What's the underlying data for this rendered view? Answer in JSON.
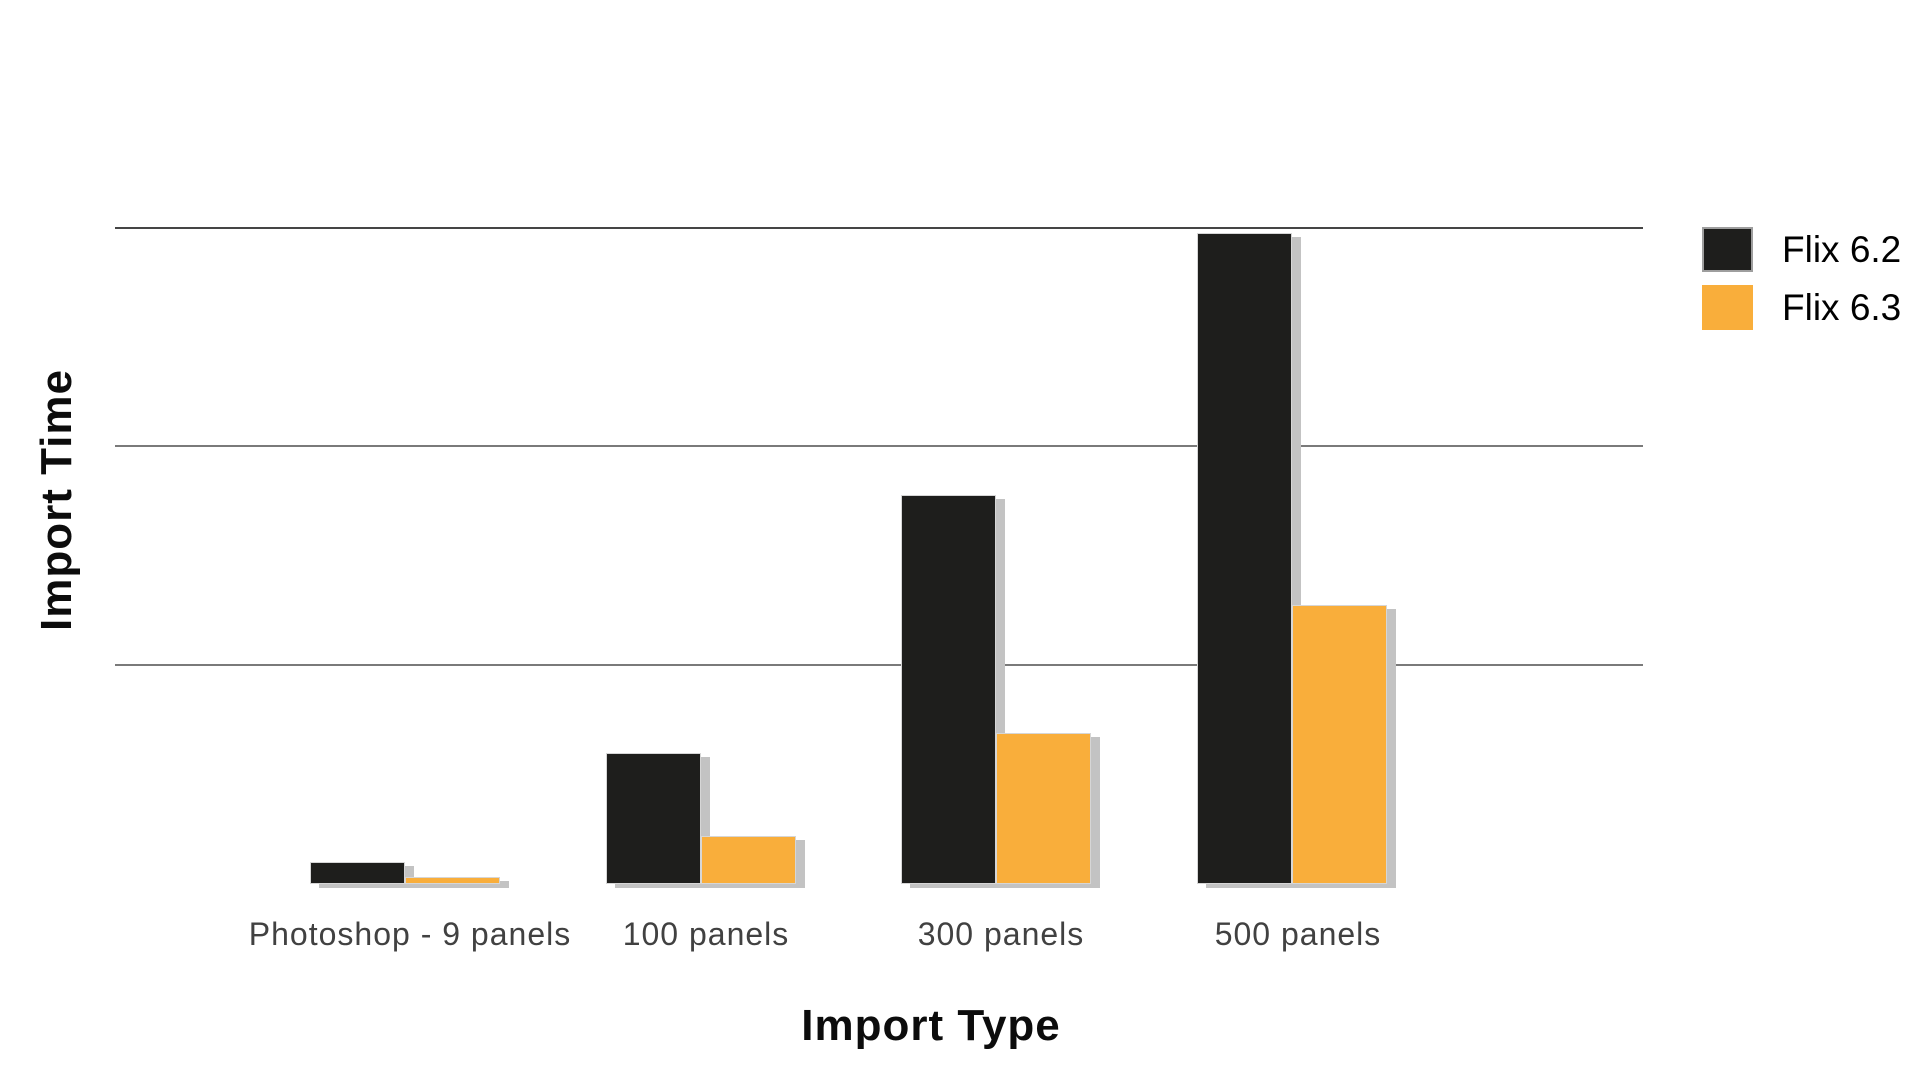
{
  "chart_data": {
    "type": "bar",
    "title": "",
    "xlabel": "Import Type",
    "ylabel": "Import Time",
    "categories": [
      "Photoshop - 9 panels",
      "100 panels",
      "300 panels",
      "500 panels"
    ],
    "series": [
      {
        "name": "Flix 6.2",
        "color": "#1E1E1C",
        "values": [
          0.1,
          0.6,
          1.78,
          2.98
        ]
      },
      {
        "name": "Flix 6.3",
        "color": "#F9AE3B",
        "values": [
          0.03,
          0.22,
          0.69,
          1.28
        ]
      }
    ],
    "ylim": [
      0,
      3.25
    ],
    "y_gridline_values": [
      1,
      2,
      3
    ],
    "y_tick_labels": [],
    "grid": "horizontal",
    "legend_position": "top-right"
  },
  "legend": {
    "items": [
      {
        "label": "Flix 6.2",
        "color": "#1E1E1C"
      },
      {
        "label": "Flix 6.3",
        "color": "#F9AE3B"
      }
    ]
  },
  "colors": {
    "background": "#FFFFFF",
    "bar_dark": "#1E1E1C",
    "bar_orange": "#F9AE3B",
    "bar_shadow": "#C3C3C3",
    "gridline": "#7A7A7A",
    "category_label": "#414141",
    "axis_title": "#0C0C0C"
  }
}
